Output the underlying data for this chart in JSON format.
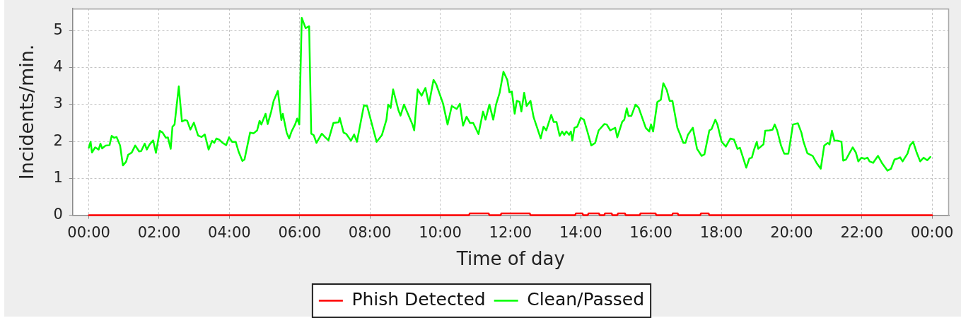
{
  "chart_data": {
    "type": "line",
    "xlabel": "Time of day",
    "ylabel": "Incidents/min.",
    "xlim": [
      -0.46,
      24.48
    ],
    "xticks": [
      {
        "value": 0,
        "label": "00:00"
      },
      {
        "value": 2,
        "label": "02:00"
      },
      {
        "value": 4,
        "label": "04:00"
      },
      {
        "value": 6,
        "label": "06:00"
      },
      {
        "value": 8,
        "label": "08:00"
      },
      {
        "value": 10,
        "label": "10:00"
      },
      {
        "value": 12,
        "label": "12:00"
      },
      {
        "value": 14,
        "label": "14:00"
      },
      {
        "value": 16,
        "label": "16:00"
      },
      {
        "value": 18,
        "label": "18:00"
      },
      {
        "value": 20,
        "label": "20:00"
      },
      {
        "value": 22,
        "label": "22:00"
      },
      {
        "value": 24,
        "label": "00:00"
      }
    ],
    "ylim": [
      0,
      5.6
    ],
    "yticks": [
      0,
      1,
      2,
      3,
      4,
      5
    ],
    "grid": true,
    "legend": "bottom",
    "line_style": "solid",
    "series": [
      {
        "name": "Phish Detected",
        "color": "#ff0000",
        "x": [
          0,
          10.82,
          10.84,
          11.38,
          11.4,
          11.72,
          11.74,
          12.55,
          12.57,
          13.84,
          13.86,
          14.05,
          14.07,
          14.2,
          14.22,
          14.52,
          14.54,
          14.67,
          14.69,
          14.88,
          14.9,
          15.04,
          15.06,
          15.26,
          15.28,
          15.68,
          15.7,
          16.13,
          16.15,
          16.6,
          16.62,
          16.76,
          16.78,
          17.4,
          17.42,
          17.64,
          17.66,
          24
        ],
        "values": [
          0,
          0,
          0.05,
          0.05,
          0,
          0,
          0.05,
          0.05,
          0,
          0,
          0.05,
          0.05,
          0,
          0,
          0.05,
          0.05,
          0,
          0,
          0.05,
          0.05,
          0,
          0,
          0.05,
          0.05,
          0,
          0,
          0.05,
          0.05,
          0,
          0,
          0.05,
          0.05,
          0,
          0,
          0.05,
          0.05,
          0,
          0
        ]
      },
      {
        "name": "Clean/Passed",
        "color": "#00ff00",
        "x": [
          0,
          0.05,
          0.09,
          0.18,
          0.28,
          0.33,
          0.38,
          0.48,
          0.59,
          0.65,
          0.72,
          0.79,
          0.89,
          0.97,
          1.06,
          1.12,
          1.22,
          1.32,
          1.43,
          1.49,
          1.59,
          1.65,
          1.73,
          1.83,
          1.91,
          2.02,
          2.1,
          2.19,
          2.25,
          2.33,
          2.38,
          2.44,
          2.56,
          2.65,
          2.74,
          2.8,
          2.89,
          2.99,
          3.11,
          3.21,
          3.3,
          3.41,
          3.51,
          3.57,
          3.63,
          3.71,
          3.81,
          3.91,
          3.99,
          4.08,
          4.18,
          4.26,
          4.37,
          4.43,
          4.59,
          4.69,
          4.79,
          4.86,
          4.91,
          5.03,
          5.09,
          5.19,
          5.26,
          5.38,
          5.48,
          5.52,
          5.63,
          5.7,
          5.77,
          5.87,
          5.93,
          5.99,
          6.06,
          6.17,
          6.27,
          6.33,
          6.4,
          6.48,
          6.63,
          6.73,
          6.82,
          6.96,
          7.11,
          7.14,
          7.25,
          7.33,
          7.46,
          7.55,
          7.63,
          7.83,
          7.92,
          8.19,
          8.34,
          8.47,
          8.52,
          8.59,
          8.66,
          8.81,
          8.87,
          8.97,
          9.21,
          9.26,
          9.36,
          9.47,
          9.58,
          9.68,
          9.81,
          9.89,
          10.08,
          10.21,
          10.33,
          10.47,
          10.56,
          10.65,
          10.75,
          10.85,
          10.94,
          11.09,
          11.22,
          11.29,
          11.4,
          11.51,
          11.59,
          11.69,
          11.8,
          11.91,
          11.97,
          12.04,
          12.12,
          12.18,
          12.26,
          12.31,
          12.39,
          12.46,
          12.57,
          12.66,
          12.76,
          12.86,
          12.94,
          13.02,
          13.16,
          13.23,
          13.31,
          13.4,
          13.47,
          13.53,
          13.59,
          13.67,
          13.72,
          13.76,
          13.82,
          13.9,
          14,
          14.09,
          14.18,
          14.3,
          14.41,
          14.51,
          14.67,
          14.74,
          14.84,
          14.98,
          15.04,
          15.18,
          15.24,
          15.31,
          15.36,
          15.44,
          15.56,
          15.65,
          15.85,
          15.95,
          16,
          16.06,
          16.18,
          16.28,
          16.35,
          16.45,
          16.53,
          16.61,
          16.75,
          16.82,
          16.92,
          16.98,
          17.05,
          17.19,
          17.31,
          17.44,
          17.52,
          17.66,
          17.72,
          17.83,
          17.89,
          18.01,
          18.13,
          18.26,
          18.36,
          18.46,
          18.53,
          18.71,
          18.8,
          18.87,
          18.93,
          19.01,
          19.05,
          19.2,
          19.25,
          19.37,
          19.46,
          19.52,
          19.59,
          19.7,
          19.79,
          19.91,
          20.04,
          20.18,
          20.28,
          20.34,
          20.45,
          20.6,
          20.71,
          20.83,
          20.93,
          21.03,
          21.08,
          21.15,
          21.22,
          21.32,
          21.42,
          21.47,
          21.55,
          21.64,
          21.74,
          21.83,
          21.9,
          21.99,
          22.08,
          22.16,
          22.22,
          22.32,
          22.46,
          22.57,
          22.73,
          22.83,
          22.93,
          23.03,
          23.09,
          23.16,
          23.3,
          23.37,
          23.46,
          23.56,
          23.66,
          23.76,
          23.86,
          23.95
        ],
        "values": [
          1.83,
          1.99,
          1.7,
          1.84,
          1.78,
          1.94,
          1.81,
          1.89,
          1.9,
          2.15,
          2.1,
          2.12,
          1.89,
          1.35,
          1.45,
          1.64,
          1.7,
          1.89,
          1.73,
          1.74,
          1.94,
          1.78,
          1.92,
          2.03,
          1.69,
          2.29,
          2.24,
          2.1,
          2.11,
          1.8,
          2.4,
          2.46,
          3.49,
          2.54,
          2.58,
          2.56,
          2.32,
          2.51,
          2.16,
          2.12,
          2.19,
          1.78,
          2.02,
          1.96,
          2.08,
          2.05,
          1.96,
          1.9,
          2.11,
          1.99,
          1.99,
          1.73,
          1.47,
          1.51,
          2.24,
          2.22,
          2.3,
          2.56,
          2.46,
          2.75,
          2.47,
          2.81,
          3.1,
          3.37,
          2.58,
          2.75,
          2.24,
          2.08,
          2.27,
          2.46,
          2.62,
          2.46,
          5.35,
          5.07,
          5.12,
          2.21,
          2.17,
          1.96,
          2.21,
          2.11,
          2.03,
          2.5,
          2.52,
          2.64,
          2.24,
          2.2,
          2.02,
          2.19,
          1.99,
          2.98,
          2.96,
          1.99,
          2.17,
          2.59,
          3.0,
          2.91,
          3.41,
          2.85,
          2.7,
          3.0,
          2.46,
          2.3,
          3.41,
          3.24,
          3.45,
          3.01,
          3.67,
          3.54,
          3.03,
          2.46,
          2.96,
          2.88,
          3.02,
          2.43,
          2.67,
          2.5,
          2.5,
          2.2,
          2.81,
          2.59,
          3.0,
          2.59,
          3.0,
          3.31,
          3.89,
          3.67,
          3.33,
          3.35,
          2.75,
          3.1,
          3.07,
          2.81,
          3.32,
          2.96,
          3.1,
          2.65,
          2.37,
          2.08,
          2.4,
          2.3,
          2.72,
          2.53,
          2.53,
          2.15,
          2.27,
          2.18,
          2.27,
          2.18,
          2.27,
          2.02,
          2.37,
          2.4,
          2.64,
          2.59,
          2.3,
          1.89,
          1.96,
          2.3,
          2.47,
          2.46,
          2.3,
          2.37,
          2.11,
          2.53,
          2.59,
          2.9,
          2.69,
          2.69,
          3.0,
          2.91,
          2.37,
          2.27,
          2.46,
          2.27,
          3.07,
          3.13,
          3.58,
          3.39,
          3.1,
          3.1,
          2.37,
          2.21,
          1.96,
          1.96,
          2.18,
          2.37,
          1.8,
          1.61,
          1.65,
          2.3,
          2.33,
          2.59,
          2.46,
          1.99,
          1.86,
          2.08,
          2.05,
          1.8,
          1.83,
          1.29,
          1.54,
          1.56,
          1.77,
          1.99,
          1.8,
          1.92,
          2.29,
          2.3,
          2.32,
          2.46,
          2.3,
          1.89,
          1.67,
          1.67,
          2.46,
          2.49,
          2.24,
          1.99,
          1.68,
          1.61,
          1.42,
          1.26,
          1.89,
          1.96,
          1.92,
          2.29,
          2.02,
          2.02,
          1.99,
          1.48,
          1.51,
          1.67,
          1.84,
          1.7,
          1.46,
          1.56,
          1.53,
          1.56,
          1.46,
          1.42,
          1.61,
          1.42,
          1.21,
          1.26,
          1.51,
          1.54,
          1.57,
          1.46,
          1.67,
          1.89,
          1.99,
          1.7,
          1.46,
          1.56,
          1.49,
          1.58
        ]
      }
    ]
  }
}
